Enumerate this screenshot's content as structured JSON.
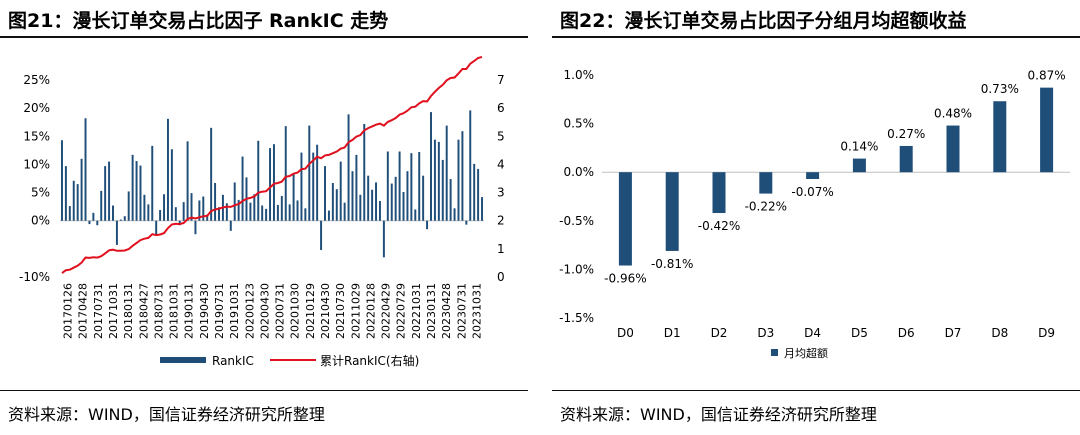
{
  "left": {
    "title": "图21：漫长订单交易占比因子 RankIC 走势",
    "source": "资料来源：WIND，国信证券经济研究所整理"
  },
  "right": {
    "title": "图22：漫长订单交易占比因子分组月均超额收益",
    "source": "资料来源：WIND，国信证券经济研究所整理"
  },
  "colors": {
    "bar": "#1f4e79",
    "line": "#e0101e",
    "rule": "#111111"
  },
  "chart_data": [
    {
      "type": "bar",
      "title": "漫长订单交易占比因子 RankIC 走势",
      "xlabel": "",
      "ylabel": "",
      "ylim": [
        -10,
        25
      ],
      "y2lim": [
        0,
        7
      ],
      "yticks": [
        "25%",
        "20%",
        "15%",
        "10%",
        "5%",
        "0%",
        "-10%"
      ],
      "y2ticks": [
        "7",
        "6",
        "5",
        "4",
        "3",
        "2",
        "1",
        "0"
      ],
      "x_ticklabels": [
        "20170126",
        "20170428",
        "20170731",
        "20171031",
        "20180131",
        "20180427",
        "20180731",
        "20181031",
        "20190131",
        "20190430",
        "20190731",
        "20191031",
        "20200123",
        "20200430",
        "20200731",
        "20201030",
        "20210129",
        "20210430",
        "20210730",
        "20211029",
        "20220128",
        "20220429",
        "20220729",
        "20221031",
        "20230131",
        "20230428",
        "20230731",
        "20231031"
      ],
      "legend": [
        "RankIC",
        "累计RankIC(右轴)"
      ],
      "legend_position": "bottom",
      "series": [
        {
          "name": "RankIC",
          "values": [
            14.3,
            9.7,
            2.6,
            7.1,
            6.5,
            11.0,
            18.2,
            -0.6,
            1.4,
            -0.8,
            5.3,
            9.7,
            10.5,
            2.7,
            -4.3,
            0.2,
            0.8,
            5.2,
            11.7,
            10.6,
            9.8,
            4.6,
            2.9,
            13.3,
            -2.7,
            1.9,
            4.7,
            18.1,
            12.7,
            2.4,
            -0.8,
            3.3,
            14.1,
            4.9,
            -2.4,
            3.6,
            4.3,
            1.1,
            16.5,
            6.7,
            2.4,
            4.6,
            3.1,
            -1.8,
            6.8,
            3.7,
            11.4,
            7.7,
            3.2,
            4.7,
            14.2,
            2.7,
            2.1,
            12.9,
            13.6,
            2.8,
            4.4,
            16.8,
            2.9,
            8.4,
            3.6,
            12.1,
            2.2,
            16.9,
            12.1,
            13.5,
            -5.2,
            9.7,
            1.8,
            6.7,
            5.6,
            10.5,
            3.2,
            18.9,
            8.8,
            11.7,
            4.6,
            17.2,
            8.0,
            5.5,
            6.8,
            3.5,
            -6.5,
            12.3,
            6.6,
            7.8,
            12.3,
            5.1,
            8.8,
            12.0,
            2.0,
            12.2,
            8.0,
            -1.5,
            19.3,
            14.4,
            14.0,
            10.8,
            16.9,
            7.4,
            2.2,
            14.4,
            15.9,
            -0.7,
            19.6,
            10.1,
            9.2,
            4.2
          ]
        },
        {
          "name": "累计RankIC(右轴)",
          "values": [
            0.14,
            0.24,
            0.26,
            0.33,
            0.4,
            0.51,
            0.69,
            0.68,
            0.7,
            0.69,
            0.74,
            0.84,
            0.95,
            0.97,
            0.93,
            0.93,
            0.94,
            0.99,
            1.11,
            1.21,
            1.31,
            1.36,
            1.39,
            1.52,
            1.49,
            1.51,
            1.56,
            1.74,
            1.87,
            1.89,
            1.88,
            1.92,
            2.06,
            2.11,
            2.08,
            2.12,
            2.16,
            2.17,
            2.34,
            2.4,
            2.43,
            2.47,
            2.5,
            2.49,
            2.55,
            2.59,
            2.7,
            2.78,
            2.81,
            2.86,
            3.0,
            3.03,
            3.05,
            3.18,
            3.31,
            3.34,
            3.39,
            3.56,
            3.59,
            3.67,
            3.71,
            3.83,
            3.85,
            4.02,
            4.14,
            4.27,
            4.22,
            4.32,
            4.34,
            4.4,
            4.46,
            4.56,
            4.6,
            4.79,
            4.87,
            4.99,
            5.04,
            5.21,
            5.29,
            5.35,
            5.41,
            5.45,
            5.38,
            5.51,
            5.57,
            5.65,
            5.77,
            5.82,
            5.91,
            6.03,
            6.05,
            6.17,
            6.25,
            6.24,
            6.43,
            6.58,
            6.72,
            6.83,
            6.99,
            7.07,
            7.09,
            7.23,
            7.39,
            7.39,
            7.58,
            7.68,
            7.78,
            7.82
          ]
        }
      ]
    },
    {
      "type": "bar",
      "title": "漫长订单交易占比因子分组月均超额收益",
      "xlabel": "",
      "ylabel": "",
      "ylim": [
        -1.5,
        1.0
      ],
      "yticks": [
        "1.0%",
        "0.5%",
        "0.0%",
        "-0.5%",
        "-1.0%",
        "-1.5%"
      ],
      "categories": [
        "D0",
        "D1",
        "D2",
        "D3",
        "D4",
        "D5",
        "D6",
        "D7",
        "D8",
        "D9"
      ],
      "series": [
        {
          "name": "月均超额",
          "values": [
            -0.96,
            -0.81,
            -0.42,
            -0.22,
            -0.07,
            0.14,
            0.27,
            0.48,
            0.73,
            0.87
          ],
          "labels": [
            "-0.96%",
            "-0.81%",
            "-0.42%",
            "-0.22%",
            "-0.07%",
            "0.14%",
            "0.27%",
            "0.48%",
            "0.73%",
            "0.87%"
          ]
        }
      ],
      "legend": [
        "月均超额"
      ],
      "legend_position": "bottom"
    }
  ]
}
